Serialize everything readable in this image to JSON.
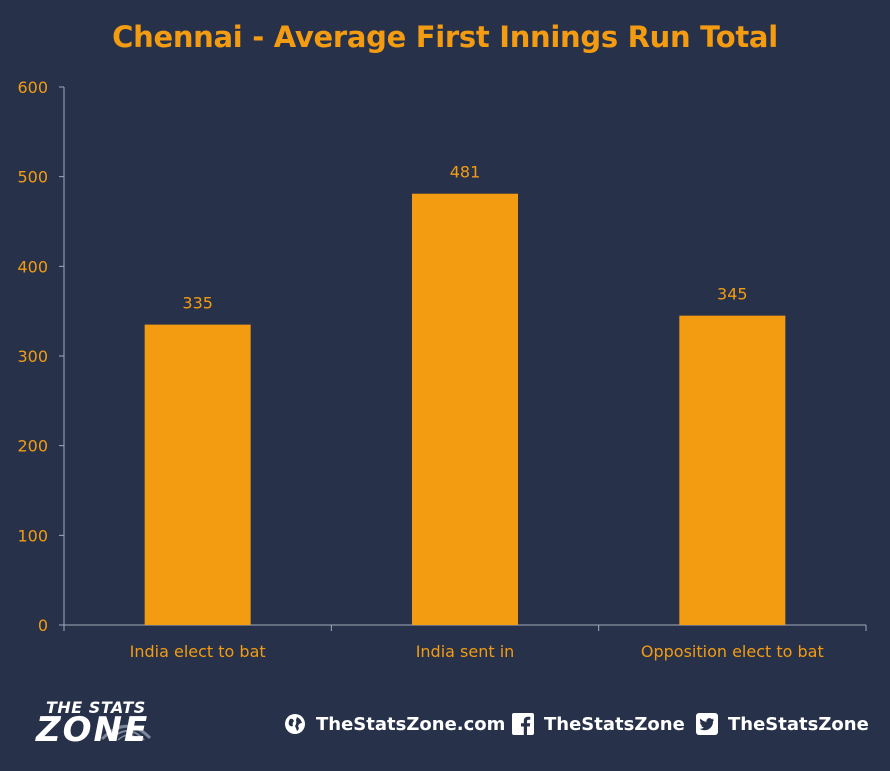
{
  "chart_data": {
    "type": "bar",
    "title": "Chennai - Average First Innings Run Total",
    "categories": [
      "India elect to bat",
      "India sent in",
      "Opposition elect to bat"
    ],
    "values": [
      335,
      481,
      345
    ],
    "ylim": [
      0,
      600
    ],
    "yticks": [
      0,
      100,
      200,
      300,
      400,
      500,
      600
    ],
    "grid": false,
    "legend": "none",
    "colors": {
      "bar": "#f39c12",
      "label": "#f39c12",
      "axis": "#a3aab8",
      "background": "#27314a"
    }
  },
  "branding": {
    "logo_top": "THE STATS",
    "logo_bottom": "ZONE",
    "website": "TheStatsZone.com",
    "facebook": "TheStatsZone",
    "twitter": "TheStatsZone",
    "icons": [
      "globe-icon",
      "facebook-icon",
      "twitter-icon"
    ]
  }
}
